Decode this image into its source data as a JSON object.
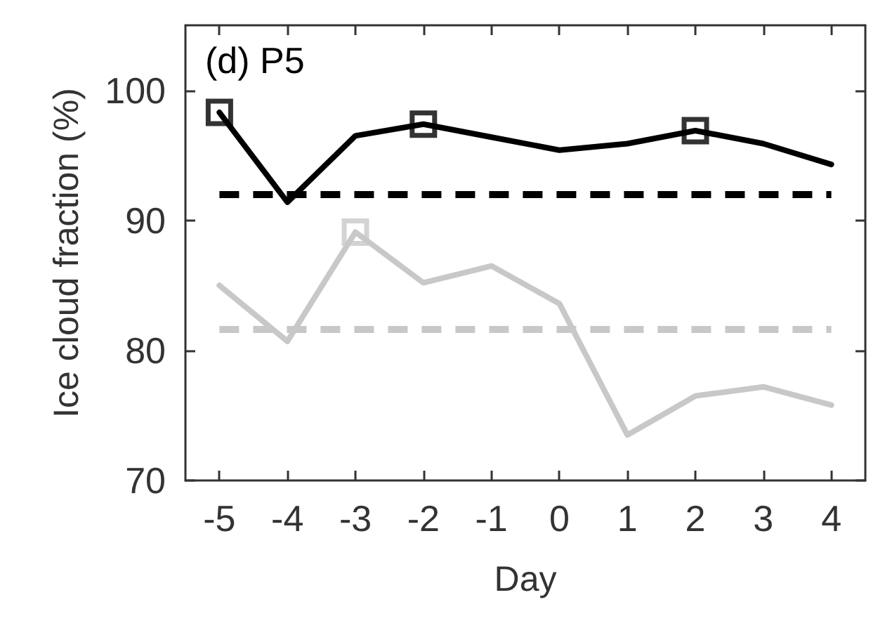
{
  "chart_data": {
    "type": "line",
    "ylabel": "Ice cloud fraction (%)",
    "xlabel": "Day",
    "annotations": [
      "(d) P5"
    ],
    "categories": [
      "-5",
      "-4",
      "-3",
      "-2",
      "-1",
      "0",
      "1",
      "2",
      "3",
      "4"
    ],
    "ylim": [
      70,
      105
    ],
    "yticks": [
      70,
      80,
      90,
      100
    ],
    "line_style": "solid",
    "marker": "none",
    "series": [
      {
        "color": "#000000",
        "values": [
          98.3,
          91.4,
          96.5,
          97.4,
          96.4,
          95.4,
          95.9,
          96.9,
          95.9,
          94.3
        ]
      },
      {
        "color": "#c8c8c8",
        "values": [
          85.0,
          80.7,
          89.1,
          85.2,
          86.5,
          83.6,
          73.5,
          76.5,
          77.2,
          75.8
        ]
      },
      {
        "type": "scatter",
        "marker": "square",
        "color": "#000000",
        "x": [
          "-5",
          "-2",
          "2"
        ],
        "values": [
          98.3,
          97.4,
          96.9
        ]
      },
      {
        "type": "scatter",
        "marker": "square",
        "color": "#c8c8c8",
        "x": [
          "-3"
        ],
        "values": [
          89.1
        ]
      }
    ],
    "ref_lines": [
      {
        "axis": "y",
        "value": 92.0,
        "color": "#000000",
        "line_style": "dashed"
      },
      {
        "axis": "y",
        "value": 81.6,
        "color": "#c8c8c8",
        "line_style": "dashed"
      }
    ]
  }
}
